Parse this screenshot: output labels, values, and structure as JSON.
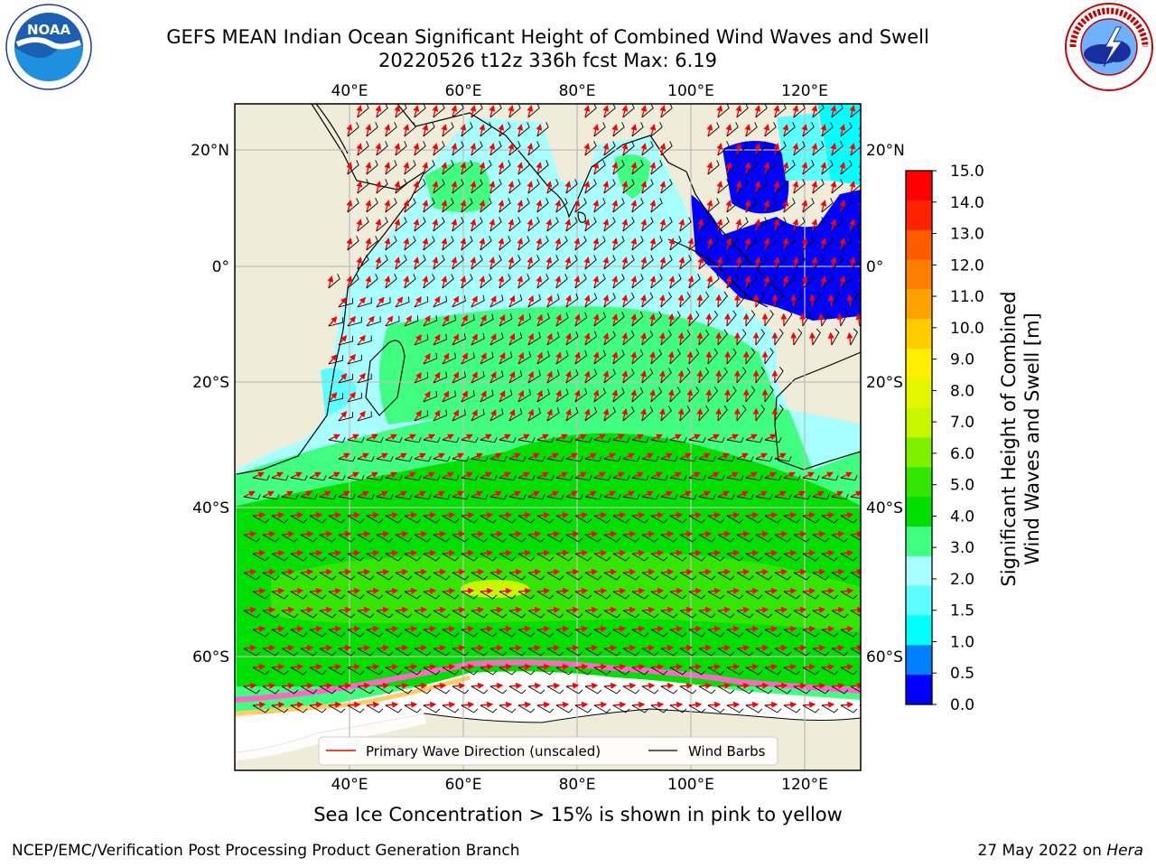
{
  "header": {
    "title_line1": "GEFS MEAN Indian Ocean Significant Height of Combined Wind Waves and Swell",
    "title_line2": "20220526 t12z 336h fcst   Max: 6.19"
  },
  "logos": {
    "left": {
      "text": "NOAA",
      "ring_text": "NATIONAL OCEANIC AND ATMOSPHERIC ADMINISTRATION · U.S. DEPARTMENT OF COMMERCE"
    },
    "right": {
      "ring_text": "NATIONAL WEATHER SERVICE"
    }
  },
  "map": {
    "lon_labels": [
      "40°E",
      "60°E",
      "80°E",
      "100°E",
      "120°E"
    ],
    "lat_labels": [
      "20°N",
      "0°",
      "20°S",
      "40°S",
      "60°S"
    ],
    "legend": {
      "wave_direction": "Primary Wave Direction (unscaled)",
      "wind_barbs": "Wind Barbs",
      "wave_color": "#ff0000",
      "barb_color": "#000000"
    }
  },
  "colorbar": {
    "label_line1": "Significant Height of Combined",
    "label_line2": "Wind Waves and Swell [m]",
    "ticks": [
      "15.0",
      "14.0",
      "13.0",
      "12.0",
      "11.0",
      "10.0",
      "9.0",
      "8.0",
      "7.0",
      "6.0",
      "5.0",
      "4.0",
      "3.0",
      "2.0",
      "1.5",
      "1.0",
      "0.5",
      "0.0"
    ],
    "colors": [
      "#ff0000",
      "#ff2200",
      "#ff5a00",
      "#ff8000",
      "#ffa200",
      "#ffcc00",
      "#ffee00",
      "#e6f500",
      "#c8f500",
      "#7ef000",
      "#33e600",
      "#00e000",
      "#40ff80",
      "#a8ffff",
      "#5cffff",
      "#00ffff",
      "#0080ff",
      "#0000ff"
    ]
  },
  "caption": "Sea Ice Concentration > 15% is shown in pink to yellow",
  "footer": {
    "left": "NCEP/EMC/Verification Post Processing Product Generation Branch",
    "right_date": "27 May 2022 on ",
    "right_host": "Hera"
  }
}
